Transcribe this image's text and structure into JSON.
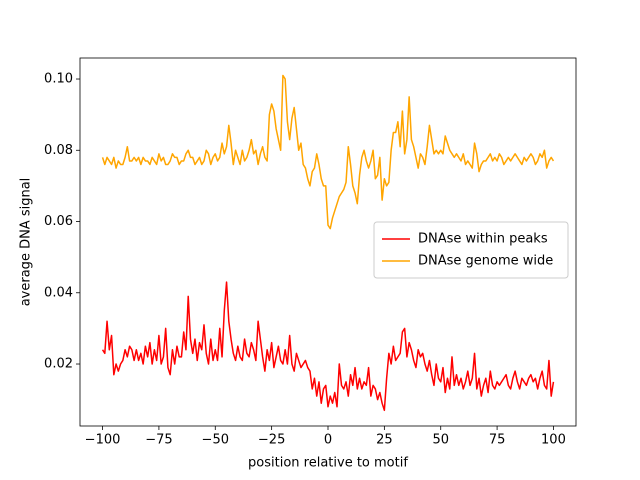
{
  "chart_data": {
    "type": "line",
    "xlabel": "position relative to motif",
    "ylabel": "average DNA signal",
    "legend": "center right",
    "grid": false,
    "xlim": [
      -110,
      110
    ],
    "ylim": [
      0.0026,
      0.1059
    ],
    "xticks": [
      {
        "value": -100,
        "label": "−100"
      },
      {
        "value": -75,
        "label": "−75"
      },
      {
        "value": -50,
        "label": "−50"
      },
      {
        "value": -25,
        "label": "−25"
      },
      0,
      25,
      50,
      75,
      100
    ],
    "yticks": [
      0.02,
      0.04,
      0.06,
      0.08,
      {
        "value": 0.1,
        "label": "0.10"
      }
    ],
    "x": [
      -100,
      -99,
      -98,
      -97,
      -96,
      -95,
      -94,
      -93,
      -92,
      -91,
      -90,
      -89,
      -88,
      -87,
      -86,
      -85,
      -84,
      -83,
      -82,
      -81,
      -80,
      -79,
      -78,
      -77,
      -76,
      -75,
      -74,
      -73,
      -72,
      -71,
      -70,
      -69,
      -68,
      -67,
      -66,
      -65,
      -64,
      -63,
      -62,
      -61,
      -60,
      -59,
      -58,
      -57,
      -56,
      -55,
      -54,
      -53,
      -52,
      -51,
      -50,
      -49,
      -48,
      -47,
      -46,
      -45,
      -44,
      -43,
      -42,
      -41,
      -40,
      -39,
      -38,
      -37,
      -36,
      -35,
      -34,
      -33,
      -32,
      -31,
      -30,
      -29,
      -28,
      -27,
      -26,
      -25,
      -24,
      -23,
      -22,
      -21,
      -20,
      -19,
      -18,
      -17,
      -16,
      -15,
      -14,
      -13,
      -12,
      -11,
      -10,
      -9,
      -8,
      -7,
      -6,
      -5,
      -4,
      -3,
      -2,
      -1,
      0,
      1,
      2,
      3,
      4,
      5,
      6,
      7,
      8,
      9,
      10,
      11,
      12,
      13,
      14,
      15,
      16,
      17,
      18,
      19,
      20,
      21,
      22,
      23,
      24,
      25,
      26,
      27,
      28,
      29,
      30,
      31,
      32,
      33,
      34,
      35,
      36,
      37,
      38,
      39,
      40,
      41,
      42,
      43,
      44,
      45,
      46,
      47,
      48,
      49,
      50,
      51,
      52,
      53,
      54,
      55,
      56,
      57,
      58,
      59,
      60,
      61,
      62,
      63,
      64,
      65,
      66,
      67,
      68,
      69,
      70,
      71,
      72,
      73,
      74,
      75,
      76,
      77,
      78,
      79,
      80,
      81,
      82,
      83,
      84,
      85,
      86,
      87,
      88,
      89,
      90,
      91,
      92,
      93,
      94,
      95,
      96,
      97,
      98,
      99,
      100
    ],
    "series": [
      {
        "name": "DNAse within peaks",
        "color": "#ff0000",
        "values": [
          0.024,
          0.023,
          0.032,
          0.024,
          0.028,
          0.017,
          0.02,
          0.018,
          0.02,
          0.021,
          0.024,
          0.022,
          0.025,
          0.024,
          0.021,
          0.024,
          0.021,
          0.023,
          0.02,
          0.025,
          0.022,
          0.026,
          0.02,
          0.024,
          0.021,
          0.028,
          0.02,
          0.022,
          0.03,
          0.019,
          0.017,
          0.024,
          0.02,
          0.025,
          0.022,
          0.022,
          0.029,
          0.024,
          0.039,
          0.027,
          0.023,
          0.027,
          0.021,
          0.026,
          0.024,
          0.031,
          0.023,
          0.02,
          0.027,
          0.021,
          0.024,
          0.021,
          0.03,
          0.022,
          0.035,
          0.043,
          0.032,
          0.027,
          0.023,
          0.021,
          0.025,
          0.022,
          0.021,
          0.027,
          0.023,
          0.022,
          0.026,
          0.024,
          0.021,
          0.032,
          0.027,
          0.022,
          0.018,
          0.024,
          0.021,
          0.026,
          0.019,
          0.022,
          0.025,
          0.021,
          0.02,
          0.024,
          0.02,
          0.028,
          0.02,
          0.018,
          0.023,
          0.021,
          0.019,
          0.02,
          0.021,
          0.019,
          0.018,
          0.013,
          0.016,
          0.011,
          0.015,
          0.009,
          0.013,
          0.014,
          0.008,
          0.011,
          0.009,
          0.012,
          0.008,
          0.02,
          0.014,
          0.013,
          0.015,
          0.011,
          0.017,
          0.014,
          0.019,
          0.013,
          0.016,
          0.013,
          0.015,
          0.014,
          0.019,
          0.011,
          0.014,
          0.013,
          0.01,
          0.012,
          0.009,
          0.007,
          0.016,
          0.023,
          0.02,
          0.025,
          0.021,
          0.022,
          0.023,
          0.029,
          0.03,
          0.022,
          0.026,
          0.024,
          0.021,
          0.019,
          0.024,
          0.022,
          0.023,
          0.02,
          0.018,
          0.021,
          0.017,
          0.014,
          0.02,
          0.016,
          0.015,
          0.019,
          0.012,
          0.016,
          0.013,
          0.022,
          0.014,
          0.017,
          0.014,
          0.016,
          0.013,
          0.015,
          0.018,
          0.014,
          0.016,
          0.023,
          0.013,
          0.016,
          0.011,
          0.014,
          0.016,
          0.012,
          0.018,
          0.014,
          0.013,
          0.015,
          0.014,
          0.015,
          0.016,
          0.017,
          0.014,
          0.013,
          0.016,
          0.018,
          0.015,
          0.013,
          0.016,
          0.015,
          0.014,
          0.016,
          0.017,
          0.015,
          0.016,
          0.013,
          0.016,
          0.018,
          0.014,
          0.013,
          0.021,
          0.011,
          0.015
        ]
      },
      {
        "name": "DNAse genome wide",
        "color": "#ffa500",
        "values": [
          0.078,
          0.076,
          0.078,
          0.077,
          0.076,
          0.078,
          0.075,
          0.077,
          0.076,
          0.076,
          0.078,
          0.081,
          0.077,
          0.077,
          0.078,
          0.077,
          0.078,
          0.076,
          0.078,
          0.077,
          0.077,
          0.076,
          0.078,
          0.077,
          0.076,
          0.079,
          0.077,
          0.078,
          0.076,
          0.076,
          0.077,
          0.079,
          0.078,
          0.078,
          0.076,
          0.077,
          0.077,
          0.079,
          0.08,
          0.078,
          0.078,
          0.076,
          0.077,
          0.078,
          0.076,
          0.077,
          0.08,
          0.079,
          0.076,
          0.078,
          0.079,
          0.077,
          0.078,
          0.082,
          0.079,
          0.081,
          0.087,
          0.082,
          0.076,
          0.08,
          0.078,
          0.076,
          0.08,
          0.077,
          0.078,
          0.08,
          0.083,
          0.079,
          0.08,
          0.076,
          0.079,
          0.081,
          0.078,
          0.077,
          0.09,
          0.093,
          0.091,
          0.086,
          0.083,
          0.08,
          0.101,
          0.1,
          0.088,
          0.083,
          0.089,
          0.092,
          0.086,
          0.08,
          0.082,
          0.076,
          0.075,
          0.072,
          0.07,
          0.074,
          0.075,
          0.079,
          0.076,
          0.072,
          0.07,
          0.07,
          0.059,
          0.058,
          0.061,
          0.063,
          0.065,
          0.067,
          0.068,
          0.069,
          0.071,
          0.081,
          0.076,
          0.07,
          0.068,
          0.065,
          0.073,
          0.078,
          0.08,
          0.077,
          0.075,
          0.077,
          0.08,
          0.072,
          0.073,
          0.078,
          0.066,
          0.072,
          0.07,
          0.071,
          0.08,
          0.085,
          0.085,
          0.088,
          0.081,
          0.091,
          0.079,
          0.083,
          0.095,
          0.083,
          0.081,
          0.078,
          0.075,
          0.079,
          0.078,
          0.076,
          0.081,
          0.087,
          0.083,
          0.079,
          0.08,
          0.079,
          0.08,
          0.079,
          0.084,
          0.082,
          0.08,
          0.079,
          0.078,
          0.079,
          0.078,
          0.077,
          0.079,
          0.076,
          0.077,
          0.076,
          0.075,
          0.082,
          0.079,
          0.074,
          0.076,
          0.077,
          0.077,
          0.078,
          0.079,
          0.077,
          0.078,
          0.077,
          0.079,
          0.078,
          0.076,
          0.077,
          0.078,
          0.077,
          0.078,
          0.079,
          0.078,
          0.077,
          0.076,
          0.078,
          0.077,
          0.078,
          0.079,
          0.078,
          0.076,
          0.077,
          0.079,
          0.078,
          0.08,
          0.075,
          0.077,
          0.078,
          0.077
        ]
      }
    ]
  }
}
